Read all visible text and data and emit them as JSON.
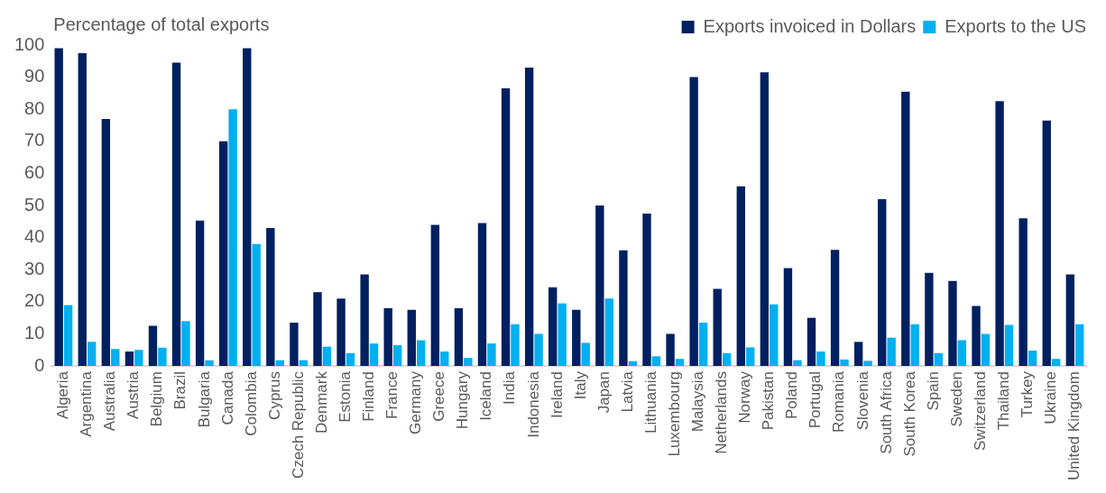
{
  "chart_data": {
    "type": "bar",
    "ylabel": "Percentage of total exports",
    "categories": [
      "Algeria",
      "Argentina",
      "Australia",
      "Austria",
      "Belgium",
      "Brazil",
      "Bulgaria",
      "Canada",
      "Colombia",
      "Cyprus",
      "Czech Republic",
      "Denmark",
      "Estonia",
      "Finland",
      "France",
      "Germany",
      "Greece",
      "Hungary",
      "Iceland",
      "India",
      "Indonesia",
      "Ireland",
      "Italy",
      "Japan",
      "Latvia",
      "Lithuania",
      "Luxembourg",
      "Malaysia",
      "Netherlands",
      "Norway",
      "Pakistan",
      "Poland",
      "Portugal",
      "Romania",
      "Slovenia",
      "South Africa",
      "South Korea",
      "Spain",
      "Sweden",
      "Switzerland",
      "Thailand",
      "Turkey",
      "Ukraine",
      "United Kingdom"
    ],
    "series": [
      {
        "name": "Exports invoiced in Dollars",
        "color": "#002060",
        "values": [
          99,
          97.5,
          77,
          4.5,
          12.5,
          94.5,
          45.3,
          70,
          99,
          43,
          13.5,
          23,
          21,
          28.5,
          18,
          17.5,
          44,
          18,
          44.5,
          86.5,
          93,
          24.5,
          17.5,
          50,
          36,
          47.5,
          10,
          90,
          24,
          56,
          91.5,
          30.5,
          15,
          36.2,
          7.5,
          52,
          85.5,
          29,
          26.5,
          18.7,
          82.5,
          46,
          76.5,
          28.5
        ]
      },
      {
        "name": "Exports to the US",
        "color": "#00b0f0",
        "values": [
          19,
          7.5,
          5.3,
          5,
          5.7,
          14,
          1.8,
          80,
          38,
          1.8,
          1.8,
          6,
          4,
          7,
          6.5,
          8,
          4.5,
          2.5,
          7,
          13,
          10,
          19.5,
          7.2,
          21,
          1.5,
          3,
          2.2,
          13.5,
          4,
          5.8,
          19.2,
          1.8,
          4.5,
          2,
          1.6,
          8.8,
          13,
          4,
          8,
          10,
          12.8,
          4.8,
          2.2,
          13
        ]
      }
    ],
    "ylim": [
      0,
      100
    ],
    "yticks": [
      0,
      10,
      20,
      30,
      40,
      50,
      60,
      70,
      80,
      90,
      100
    ],
    "grid": false,
    "legend": "top right"
  }
}
